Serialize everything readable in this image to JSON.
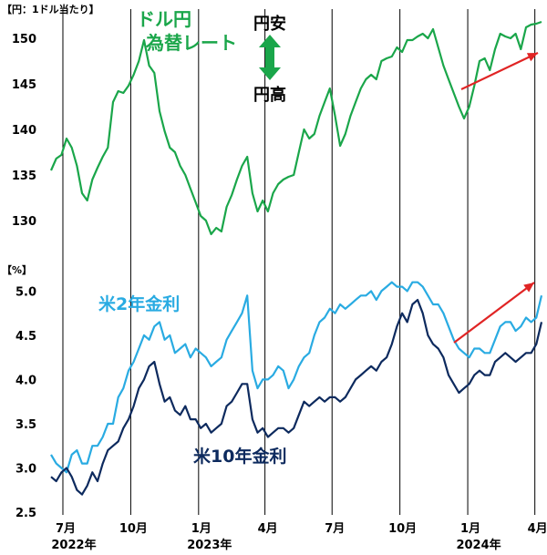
{
  "chart_data": [
    {
      "type": "line",
      "unit_label": "【円：1ドル当たり】",
      "series": [
        {
          "name": "ドル円\n為替レート",
          "color": "#1aa64a",
          "x": [
            "2022-06-15",
            "2022-06-22",
            "2022-06-29",
            "2022-07-06",
            "2022-07-13",
            "2022-07-20",
            "2022-07-27",
            "2022-08-03",
            "2022-08-10",
            "2022-08-17",
            "2022-08-24",
            "2022-08-31",
            "2022-09-07",
            "2022-09-14",
            "2022-09-21",
            "2022-09-28",
            "2022-10-05",
            "2022-10-12",
            "2022-10-19",
            "2022-10-26",
            "2022-11-02",
            "2022-11-09",
            "2022-11-16",
            "2022-11-23",
            "2022-11-30",
            "2022-12-07",
            "2022-12-14",
            "2022-12-21",
            "2022-12-28",
            "2023-01-04",
            "2023-01-11",
            "2023-01-18",
            "2023-01-25",
            "2023-02-01",
            "2023-02-08",
            "2023-02-15",
            "2023-02-22",
            "2023-03-01",
            "2023-03-08",
            "2023-03-15",
            "2023-03-22",
            "2023-03-29",
            "2023-04-05",
            "2023-04-12",
            "2023-04-19",
            "2023-04-26",
            "2023-05-03",
            "2023-05-10",
            "2023-05-17",
            "2023-05-24",
            "2023-05-31",
            "2023-06-07",
            "2023-06-14",
            "2023-06-21",
            "2023-06-28",
            "2023-07-05",
            "2023-07-12",
            "2023-07-19",
            "2023-07-26",
            "2023-08-02",
            "2023-08-09",
            "2023-08-16",
            "2023-08-23",
            "2023-08-30",
            "2023-09-06",
            "2023-09-13",
            "2023-09-20",
            "2023-09-27",
            "2023-10-04",
            "2023-10-11",
            "2023-10-18",
            "2023-10-25",
            "2023-11-01",
            "2023-11-08",
            "2023-11-15",
            "2023-11-22",
            "2023-11-29",
            "2023-12-06",
            "2023-12-13",
            "2023-12-20",
            "2023-12-27",
            "2024-01-03",
            "2024-01-10",
            "2024-01-17",
            "2024-01-24",
            "2024-01-31",
            "2024-02-07",
            "2024-02-14",
            "2024-02-21",
            "2024-02-28",
            "2024-03-06",
            "2024-03-13",
            "2024-03-20",
            "2024-03-27",
            "2024-04-03",
            "2024-04-10"
          ],
          "values": [
            135.5,
            136.8,
            137.2,
            139.0,
            138.0,
            136.0,
            133.0,
            132.2,
            134.5,
            135.8,
            137.0,
            138.0,
            143.0,
            144.2,
            144.0,
            144.8,
            146.0,
            147.5,
            149.8,
            147.0,
            146.2,
            142.0,
            139.8,
            138.0,
            137.5,
            136.0,
            135.0,
            133.5,
            132.0,
            130.5,
            130.0,
            128.5,
            129.2,
            128.8,
            131.5,
            132.8,
            134.5,
            136.0,
            137.0,
            133.0,
            131.0,
            132.2,
            131.0,
            133.0,
            134.0,
            134.5,
            134.8,
            135.0,
            137.5,
            140.0,
            139.0,
            139.5,
            141.5,
            143.0,
            144.5,
            141.5,
            138.2,
            139.5,
            141.5,
            143.0,
            144.5,
            145.5,
            146.0,
            145.5,
            147.5,
            147.8,
            148.0,
            149.0,
            148.5,
            149.8,
            149.8,
            150.2,
            150.5,
            150.0,
            151.0,
            149.0,
            147.0,
            145.5,
            144.0,
            142.5,
            141.2,
            142.5,
            144.8,
            147.5,
            147.8,
            146.5,
            148.8,
            150.5,
            150.2,
            150.0,
            150.5,
            148.8,
            151.2,
            151.5,
            151.6,
            151.8
          ]
        }
      ],
      "annotations": [
        "円安",
        "円高"
      ],
      "ylim": [
        128,
        153
      ],
      "yticks": [
        130,
        135,
        140,
        145,
        150
      ]
    },
    {
      "type": "line",
      "unit_label": "【%】",
      "series": [
        {
          "name": "米2年金利",
          "color": "#29abe2",
          "x": [
            "2022-06-15",
            "2022-06-22",
            "2022-06-29",
            "2022-07-06",
            "2022-07-13",
            "2022-07-20",
            "2022-07-27",
            "2022-08-03",
            "2022-08-10",
            "2022-08-17",
            "2022-08-24",
            "2022-08-31",
            "2022-09-07",
            "2022-09-14",
            "2022-09-21",
            "2022-09-28",
            "2022-10-05",
            "2022-10-12",
            "2022-10-19",
            "2022-10-26",
            "2022-11-02",
            "2022-11-09",
            "2022-11-16",
            "2022-11-23",
            "2022-11-30",
            "2022-12-07",
            "2022-12-14",
            "2022-12-21",
            "2022-12-28",
            "2023-01-04",
            "2023-01-11",
            "2023-01-18",
            "2023-01-25",
            "2023-02-01",
            "2023-02-08",
            "2023-02-15",
            "2023-02-22",
            "2023-03-01",
            "2023-03-08",
            "2023-03-15",
            "2023-03-22",
            "2023-03-29",
            "2023-04-05",
            "2023-04-12",
            "2023-04-19",
            "2023-04-26",
            "2023-05-03",
            "2023-05-10",
            "2023-05-17",
            "2023-05-24",
            "2023-05-31",
            "2023-06-07",
            "2023-06-14",
            "2023-06-21",
            "2023-06-28",
            "2023-07-05",
            "2023-07-12",
            "2023-07-19",
            "2023-07-26",
            "2023-08-02",
            "2023-08-09",
            "2023-08-16",
            "2023-08-23",
            "2023-08-30",
            "2023-09-06",
            "2023-09-13",
            "2023-09-20",
            "2023-09-27",
            "2023-10-04",
            "2023-10-11",
            "2023-10-18",
            "2023-10-25",
            "2023-11-01",
            "2023-11-08",
            "2023-11-15",
            "2023-11-22",
            "2023-11-29",
            "2023-12-06",
            "2023-12-13",
            "2023-12-20",
            "2023-12-27",
            "2024-01-03",
            "2024-01-10",
            "2024-01-17",
            "2024-01-24",
            "2024-01-31",
            "2024-02-07",
            "2024-02-14",
            "2024-02-21",
            "2024-02-28",
            "2024-03-06",
            "2024-03-13",
            "2024-03-20",
            "2024-03-27",
            "2024-04-03",
            "2024-04-10"
          ],
          "values": [
            3.15,
            3.05,
            3.0,
            2.95,
            3.15,
            3.2,
            3.05,
            3.05,
            3.25,
            3.25,
            3.35,
            3.5,
            3.5,
            3.8,
            3.9,
            4.1,
            4.2,
            4.35,
            4.5,
            4.45,
            4.6,
            4.65,
            4.45,
            4.5,
            4.3,
            4.35,
            4.4,
            4.25,
            4.35,
            4.3,
            4.25,
            4.15,
            4.2,
            4.25,
            4.45,
            4.55,
            4.65,
            4.75,
            4.95,
            4.1,
            3.9,
            4.0,
            4.0,
            4.05,
            4.15,
            4.1,
            3.9,
            4.0,
            4.15,
            4.25,
            4.3,
            4.5,
            4.65,
            4.7,
            4.8,
            4.75,
            4.85,
            4.8,
            4.85,
            4.9,
            4.95,
            4.95,
            5.0,
            4.9,
            5.0,
            5.05,
            5.1,
            5.05,
            5.05,
            5.0,
            5.1,
            5.1,
            5.05,
            4.95,
            4.85,
            4.85,
            4.75,
            4.6,
            4.45,
            4.35,
            4.3,
            4.25,
            4.35,
            4.35,
            4.3,
            4.3,
            4.45,
            4.6,
            4.65,
            4.65,
            4.55,
            4.6,
            4.7,
            4.65,
            4.7,
            4.95
          ]
        },
        {
          "name": "米10年金利",
          "color": "#0d2a5e",
          "x": [
            "2022-06-15",
            "2022-06-22",
            "2022-06-29",
            "2022-07-06",
            "2022-07-13",
            "2022-07-20",
            "2022-07-27",
            "2022-08-03",
            "2022-08-10",
            "2022-08-17",
            "2022-08-24",
            "2022-08-31",
            "2022-09-07",
            "2022-09-14",
            "2022-09-21",
            "2022-09-28",
            "2022-10-05",
            "2022-10-12",
            "2022-10-19",
            "2022-10-26",
            "2022-11-02",
            "2022-11-09",
            "2022-11-16",
            "2022-11-23",
            "2022-11-30",
            "2022-12-07",
            "2022-12-14",
            "2022-12-21",
            "2022-12-28",
            "2023-01-04",
            "2023-01-11",
            "2023-01-18",
            "2023-01-25",
            "2023-02-01",
            "2023-02-08",
            "2023-02-15",
            "2023-02-22",
            "2023-03-01",
            "2023-03-08",
            "2023-03-15",
            "2023-03-22",
            "2023-03-29",
            "2023-04-05",
            "2023-04-12",
            "2023-04-19",
            "2023-04-26",
            "2023-05-03",
            "2023-05-10",
            "2023-05-17",
            "2023-05-24",
            "2023-05-31",
            "2023-06-07",
            "2023-06-14",
            "2023-06-21",
            "2023-06-28",
            "2023-07-05",
            "2023-07-12",
            "2023-07-19",
            "2023-07-26",
            "2023-08-02",
            "2023-08-09",
            "2023-08-16",
            "2023-08-23",
            "2023-08-30",
            "2023-09-06",
            "2023-09-13",
            "2023-09-20",
            "2023-09-27",
            "2023-10-04",
            "2023-10-11",
            "2023-10-18",
            "2023-10-25",
            "2023-11-01",
            "2023-11-08",
            "2023-11-15",
            "2023-11-22",
            "2023-11-29",
            "2023-12-06",
            "2023-12-13",
            "2023-12-20",
            "2023-12-27",
            "2024-01-03",
            "2024-01-10",
            "2024-01-17",
            "2024-01-24",
            "2024-01-31",
            "2024-02-07",
            "2024-02-14",
            "2024-02-21",
            "2024-02-28",
            "2024-03-06",
            "2024-03-13",
            "2024-03-20",
            "2024-03-27",
            "2024-04-03",
            "2024-04-10"
          ],
          "values": [
            2.9,
            2.85,
            2.95,
            3.0,
            2.9,
            2.75,
            2.7,
            2.8,
            2.95,
            2.85,
            3.05,
            3.2,
            3.25,
            3.3,
            3.45,
            3.55,
            3.7,
            3.9,
            4.0,
            4.15,
            4.2,
            3.95,
            3.75,
            3.8,
            3.65,
            3.6,
            3.7,
            3.55,
            3.55,
            3.45,
            3.5,
            3.4,
            3.45,
            3.5,
            3.7,
            3.75,
            3.85,
            3.95,
            3.95,
            3.55,
            3.4,
            3.45,
            3.35,
            3.4,
            3.45,
            3.45,
            3.4,
            3.45,
            3.6,
            3.75,
            3.7,
            3.75,
            3.8,
            3.75,
            3.8,
            3.8,
            3.75,
            3.8,
            3.9,
            4.0,
            4.05,
            4.1,
            4.15,
            4.1,
            4.2,
            4.25,
            4.4,
            4.6,
            4.75,
            4.65,
            4.85,
            4.9,
            4.75,
            4.5,
            4.4,
            4.35,
            4.25,
            4.05,
            3.95,
            3.85,
            3.9,
            3.95,
            4.05,
            4.1,
            4.05,
            4.05,
            4.2,
            4.25,
            4.3,
            4.25,
            4.2,
            4.25,
            4.3,
            4.3,
            4.4,
            4.65
          ]
        }
      ],
      "ylim": [
        2.5,
        5.2
      ],
      "yticks": [
        2.5,
        3.0,
        3.5,
        4.0,
        4.5,
        5.0
      ]
    }
  ],
  "x_axis": {
    "ticks": [
      {
        "date": "2022-07-01",
        "month": "7月",
        "year": "2022年"
      },
      {
        "date": "2022-10-01",
        "month": "10月",
        "year": ""
      },
      {
        "date": "2023-01-01",
        "month": "1月",
        "year": "2023年"
      },
      {
        "date": "2023-04-01",
        "month": "4月",
        "year": ""
      },
      {
        "date": "2023-07-01",
        "month": "7月",
        "year": ""
      },
      {
        "date": "2023-10-01",
        "month": "10月",
        "year": ""
      },
      {
        "date": "2024-01-01",
        "month": "1月",
        "year": "2024年"
      },
      {
        "date": "2024-04-01",
        "month": "4月",
        "year": ""
      }
    ]
  },
  "colors": {
    "usd_jpy": "#1aa64a",
    "us2y": "#29abe2",
    "us10y": "#0d2a5e",
    "trend_arrow": "#e02424",
    "gridline": "#000000"
  }
}
